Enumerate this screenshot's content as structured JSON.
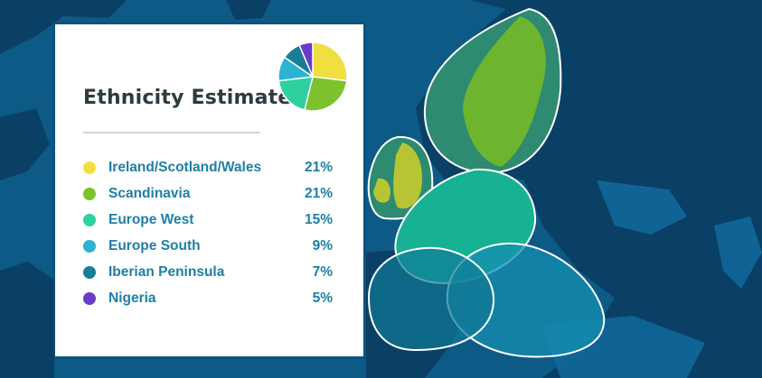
{
  "card": {
    "title": "Ethnicity Estimate"
  },
  "ethnicities": [
    {
      "name": "Ireland/Scotland/Wales",
      "percent_label": "21%",
      "percent": 21,
      "color": "#f1df3f"
    },
    {
      "name": "Scandinavia",
      "percent_label": "21%",
      "percent": 21,
      "color": "#7cc22e"
    },
    {
      "name": "Europe West",
      "percent_label": "15%",
      "percent": 15,
      "color": "#2ed0a0"
    },
    {
      "name": "Europe South",
      "percent_label": "9%",
      "percent": 9,
      "color": "#2bb3d3"
    },
    {
      "name": "Iberian Peninsula",
      "percent_label": "7%",
      "percent": 7,
      "color": "#1a7d98"
    },
    {
      "name": "Nigeria",
      "percent_label": "5%",
      "percent": 5,
      "color": "#6a3bc9"
    }
  ],
  "colors": {
    "sea": "#0d5a86",
    "land": "#0a3f66",
    "outline": "#ffffff",
    "accent_text": "#1f7fa6"
  }
}
